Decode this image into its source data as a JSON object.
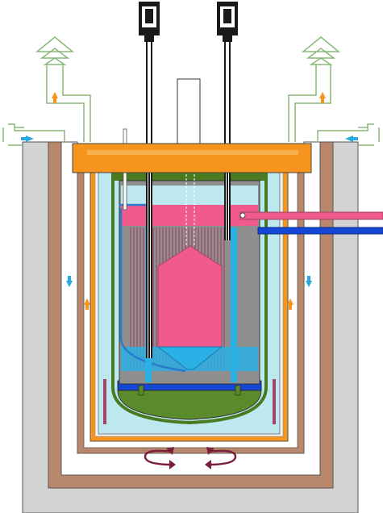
{
  "diagram": {
    "colors": {
      "concrete": "#d3d3d3",
      "liner_brown": "#b9886c",
      "vessel_orange": "#f7941d",
      "guard_green": "#4a7a1f",
      "pool_light_blue": "#bde8ef",
      "reactor_grey": "#8f8f8f",
      "hot_pink": "#f15a8c",
      "cold_blue": "#2ab0e4",
      "dark_blue": "#1447d6",
      "bottom_plenum_green": "#5b8a2a",
      "air_line_green": "#8ab87a",
      "arrow_orange": "#f7941d",
      "arrow_blue": "#2aa8e0",
      "flow_arrow_maroon": "#7a1f3a",
      "rod_black": "#1a1a1a"
    },
    "components": [
      "concrete-silo",
      "liner",
      "air-gap",
      "reactor-vessel",
      "guard-vessel",
      "primary-pool",
      "reactor-core",
      "upper-plenum",
      "heat-exchanger-pipes",
      "control-rod-drives",
      "air-chimneys",
      "recirculation-arrows"
    ],
    "icons": {
      "chimney_cap": "chimney-cap-icon",
      "air_inlet": "air-inlet-icon",
      "flow_arrow_up": "up-arrow-icon",
      "flow_arrow_down": "down-arrow-icon",
      "recirculation": "curved-arrow-icon"
    }
  }
}
